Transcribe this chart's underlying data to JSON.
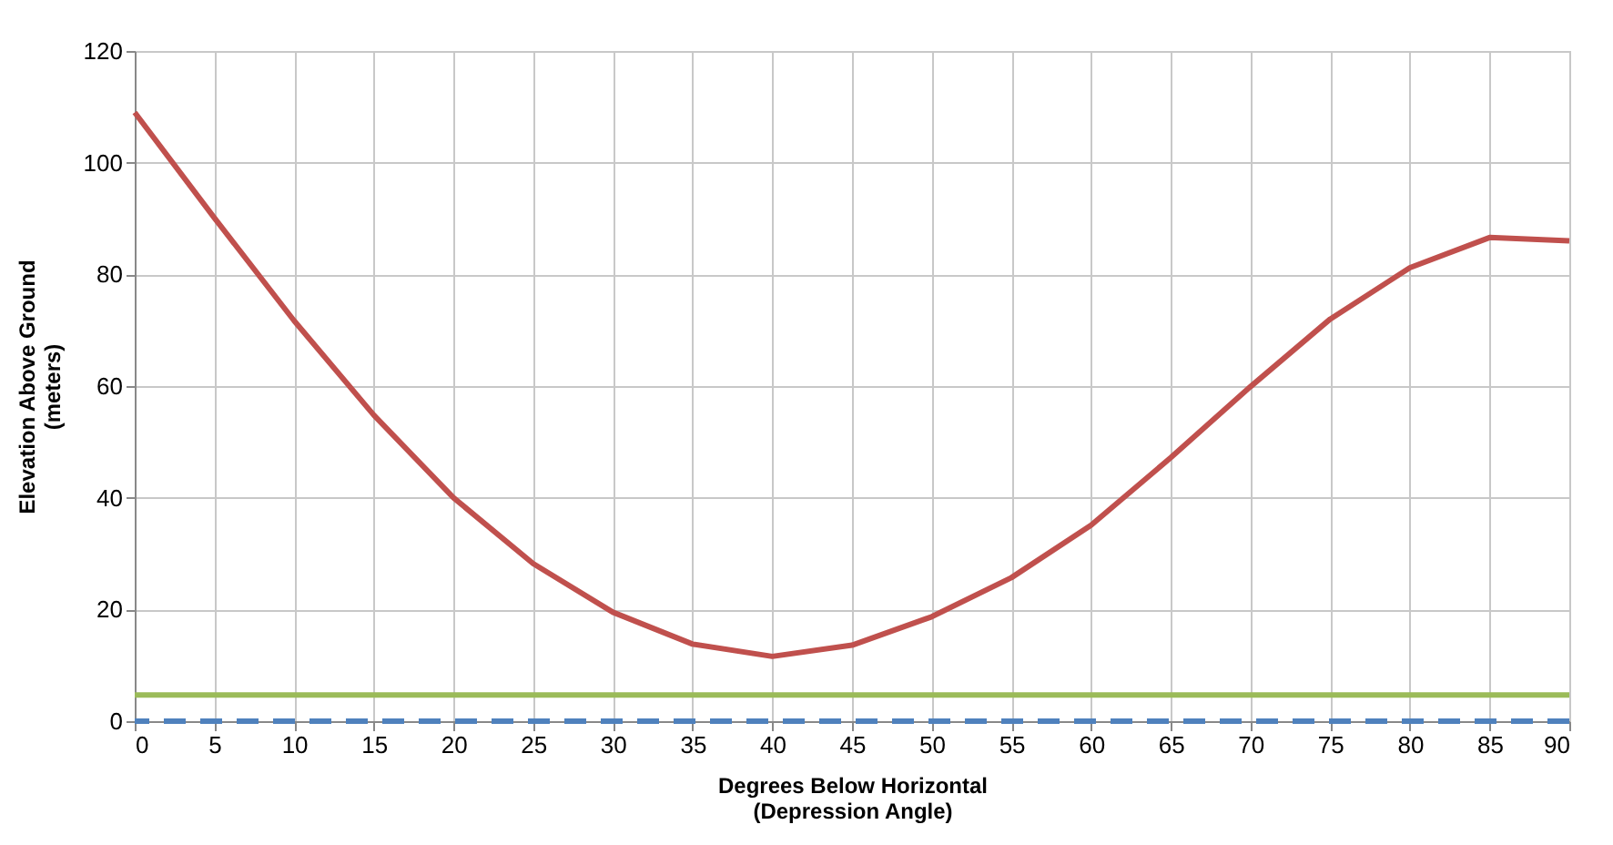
{
  "chart_data": {
    "type": "line",
    "xlabel": "Degrees Below Horizontal\n(Depression Angle)",
    "ylabel": "Elevation Above Ground\n(meters)",
    "x": [
      0,
      5,
      10,
      15,
      20,
      25,
      30,
      35,
      40,
      45,
      50,
      55,
      60,
      65,
      70,
      75,
      80,
      85,
      90
    ],
    "series": [
      {
        "color": "#c0504d",
        "values": [
          109,
          90.1,
          71.7,
          54.8,
          40,
          28.2,
          19.5,
          13.8,
          11.6,
          13.6,
          18.7,
          25.7,
          35.1,
          47.2,
          59.9,
          72,
          81.2,
          86.6,
          86
        ]
      }
    ],
    "ref_lines": [
      {
        "axis": "y",
        "value": 4.7,
        "color": "#9bbb59",
        "line_style": "solid"
      },
      {
        "axis": "y",
        "value": 0,
        "color": "#4f81bd",
        "line_style": "dashed"
      }
    ],
    "xlim": [
      0,
      90
    ],
    "xticks": [
      0,
      5,
      10,
      15,
      20,
      25,
      30,
      35,
      40,
      45,
      50,
      55,
      60,
      65,
      70,
      75,
      80,
      85,
      90
    ],
    "ylim": [
      0,
      120
    ],
    "yticks": [
      0,
      20,
      40,
      60,
      80,
      100,
      120
    ],
    "grid": true,
    "marker": "none",
    "line_style": "solid"
  }
}
